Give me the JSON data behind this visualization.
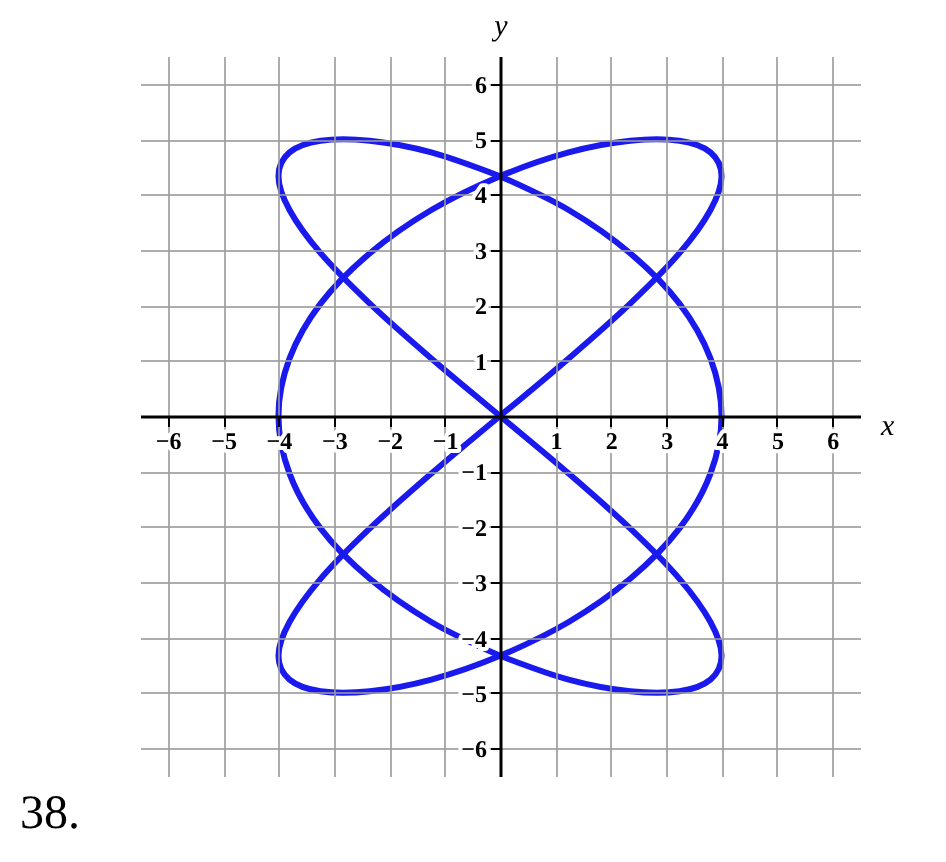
{
  "chart_data": {
    "type": "line",
    "xlabel": "x",
    "ylabel": "y",
    "annotations": [
      "38."
    ],
    "series": [
      {
        "color": "#1a1aee",
        "x": [
          0,
          1.24,
          2.35,
          3.24,
          3.8,
          4,
          3.8,
          3.24,
          2.35,
          1.24,
          0,
          -1.24,
          -2.35,
          -3.24,
          -3.8,
          -4,
          -3.8,
          -3.24,
          -2.35,
          -1.24,
          0
        ],
        "values": [
          0,
          1.04,
          2.03,
          2.94,
          3.72,
          4.33,
          4.76,
          4.97,
          4.97,
          4.76,
          4.33,
          3.72,
          2.94,
          2.03,
          1.04,
          0,
          -1.04,
          -2.03,
          -2.94,
          -3.72,
          -4.33
        ]
      },
      {
        "color": "#1a1aee",
        "x": [
          0,
          1.24,
          2.35,
          3.24,
          3.8,
          4,
          3.8,
          3.24,
          2.35,
          1.24,
          0,
          -1.24,
          -2.35,
          -3.24,
          -3.8,
          -4,
          -3.8,
          -3.24,
          -2.35,
          -1.24,
          0
        ],
        "values": [
          -4.33,
          -4.76,
          -4.97,
          -4.97,
          -4.76,
          -4.33,
          -3.72,
          -2.94,
          -2.03,
          -1.04,
          0,
          1.04,
          2.03,
          2.94,
          3.72,
          4.33,
          4.76,
          4.97,
          4.97,
          4.76,
          4.33
        ]
      },
      {
        "color": "#1a1aee",
        "x": [
          0,
          1.24,
          2.35,
          3.24,
          3.8,
          4,
          3.8,
          3.24,
          2.35,
          1.24,
          0,
          -1.24,
          -2.35,
          -3.24,
          -3.8,
          -4,
          -3.8,
          -3.24,
          -2.35,
          -1.24,
          0
        ],
        "values": [
          4.33,
          3.72,
          2.94,
          2.03,
          1.04,
          0,
          -1.04,
          -2.03,
          -2.94,
          -3.72,
          -4.33,
          -4.76,
          -4.97,
          -4.97,
          -4.76,
          -4.33,
          -3.72,
          -2.94,
          -2.03,
          -1.04,
          0
        ]
      }
    ],
    "xlim": [
      -6.5,
      6.5
    ],
    "ylim": [
      -6.5,
      6.5
    ],
    "xticks": [
      -6,
      -5,
      -4,
      -3,
      -2,
      -1,
      1,
      2,
      3,
      4,
      5,
      6
    ],
    "yticks": [
      -6,
      -5,
      -4,
      -3,
      -2,
      -1,
      1,
      2,
      3,
      4,
      5,
      6
    ],
    "grid": true
  }
}
